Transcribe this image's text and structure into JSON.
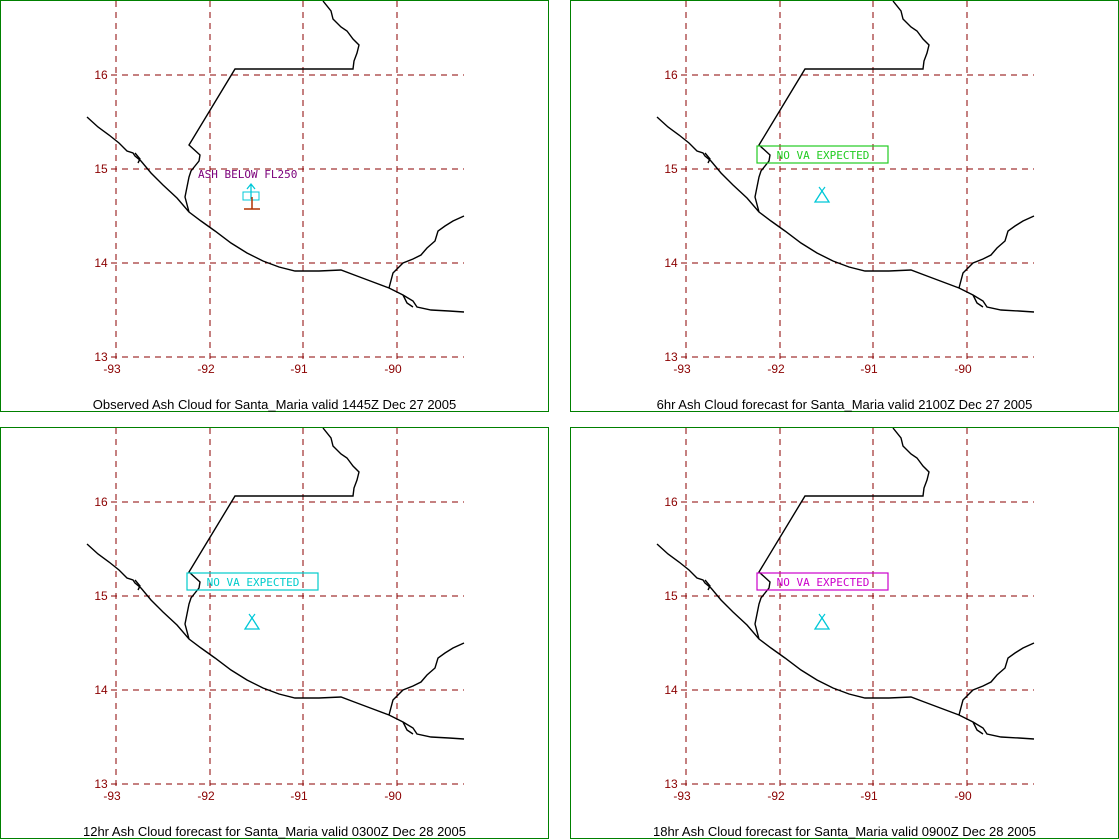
{
  "colors": {
    "grid": "#8B0000",
    "coast": "#000000",
    "border": "#008000",
    "volcano": "#00C8D8",
    "ash_text": "#7B007B",
    "panel1_box": "#22CC22",
    "panel2_box": "#00CCCC",
    "panel3_box": "#CC00CC"
  },
  "axes": {
    "y_ticks": [
      "16",
      "15",
      "14",
      "13"
    ],
    "x_ticks": [
      "-93",
      "-92",
      "-91",
      "-90"
    ]
  },
  "panels": [
    {
      "caption": "Observed Ash Cloud for Santa_Maria valid 1445Z Dec 27 2005",
      "annotation": "ASH BELOW FL250",
      "box": false
    },
    {
      "caption": "6hr Ash Cloud forecast for Santa_Maria valid 2100Z Dec 27 2005",
      "annotation": "NO VA EXPECTED",
      "box": true
    },
    {
      "caption": "12hr Ash Cloud forecast for Santa_Maria valid 0300Z Dec 28 2005",
      "annotation": "NO VA EXPECTED",
      "box": true
    },
    {
      "caption": "18hr Ash Cloud forecast for Santa_Maria valid 0900Z Dec 28 2005",
      "annotation": "NO VA EXPECTED",
      "box": true
    }
  ]
}
